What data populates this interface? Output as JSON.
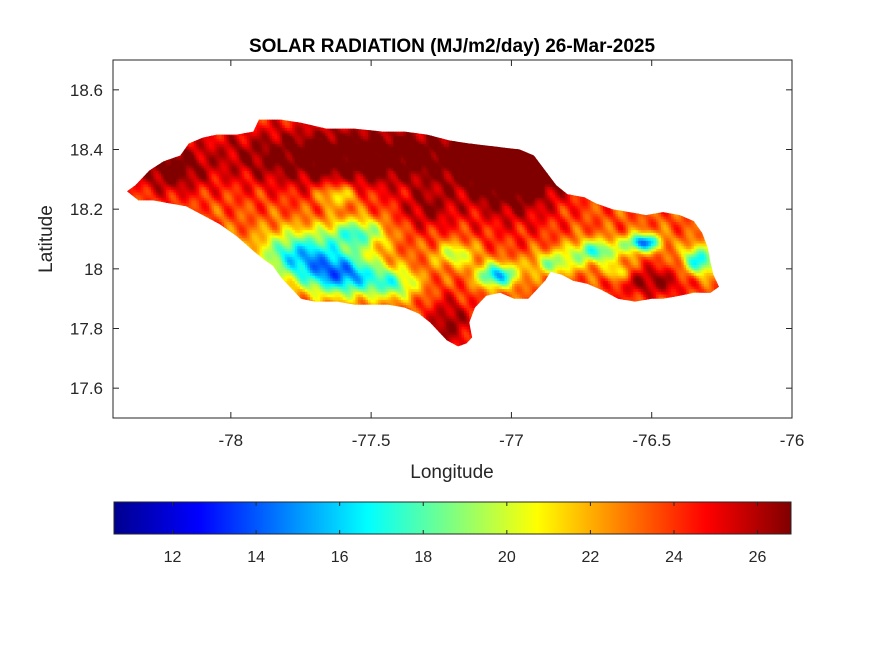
{
  "chart_data": {
    "type": "heatmap",
    "title": "SOLAR RADIATION (MJ/m2/day) 26-Mar-2025",
    "xlabel": "Longitude",
    "ylabel": "Latitude",
    "xlim": [
      -78.42,
      -76.0
    ],
    "ylim": [
      17.5,
      18.7
    ],
    "xticks": [
      -78,
      -77.5,
      -77,
      -76.5,
      -76
    ],
    "xtick_labels": [
      "-78",
      "-77.5",
      "-77",
      "-76.5",
      "-76"
    ],
    "yticks": [
      17.6,
      17.8,
      18,
      18.2,
      18.4,
      18.6
    ],
    "ytick_labels": [
      "17.6",
      "17.8",
      "18",
      "18.2",
      "18.4",
      "18.6"
    ],
    "grid": false,
    "colorbar": {
      "orientation": "horizontal",
      "colormap": "jet",
      "range": [
        10.6,
        26.8
      ],
      "ticks": [
        12,
        14,
        16,
        18,
        20,
        22,
        24,
        26
      ],
      "tick_labels": [
        "12",
        "14",
        "16",
        "18",
        "20",
        "22",
        "24",
        "26"
      ]
    },
    "outline": [
      [
        -78.37,
        18.26
      ],
      [
        -78.34,
        18.28
      ],
      [
        -78.29,
        18.33
      ],
      [
        -78.24,
        18.36
      ],
      [
        -78.18,
        18.38
      ],
      [
        -78.15,
        18.42
      ],
      [
        -78.1,
        18.44
      ],
      [
        -78.05,
        18.45
      ],
      [
        -77.98,
        18.45
      ],
      [
        -77.92,
        18.46
      ],
      [
        -77.9,
        18.5
      ],
      [
        -77.82,
        18.5
      ],
      [
        -77.75,
        18.49
      ],
      [
        -77.66,
        18.47
      ],
      [
        -77.56,
        18.47
      ],
      [
        -77.46,
        18.46
      ],
      [
        -77.38,
        18.46
      ],
      [
        -77.3,
        18.45
      ],
      [
        -77.22,
        18.43
      ],
      [
        -77.15,
        18.42
      ],
      [
        -77.06,
        18.41
      ],
      [
        -76.97,
        18.4
      ],
      [
        -76.92,
        18.38
      ],
      [
        -76.88,
        18.33
      ],
      [
        -76.84,
        18.28
      ],
      [
        -76.8,
        18.25
      ],
      [
        -76.74,
        18.24
      ],
      [
        -76.7,
        18.22
      ],
      [
        -76.64,
        18.2
      ],
      [
        -76.58,
        18.19
      ],
      [
        -76.52,
        18.18
      ],
      [
        -76.46,
        18.19
      ],
      [
        -76.4,
        18.18
      ],
      [
        -76.35,
        18.16
      ],
      [
        -76.32,
        18.12
      ],
      [
        -76.3,
        18.07
      ],
      [
        -76.29,
        18.02
      ],
      [
        -76.28,
        17.98
      ],
      [
        -76.26,
        17.94
      ],
      [
        -76.29,
        17.92
      ],
      [
        -76.35,
        17.92
      ],
      [
        -76.4,
        17.91
      ],
      [
        -76.46,
        17.9
      ],
      [
        -76.5,
        17.9
      ],
      [
        -76.56,
        17.89
      ],
      [
        -76.62,
        17.9
      ],
      [
        -76.68,
        17.93
      ],
      [
        -76.73,
        17.95
      ],
      [
        -76.78,
        17.96
      ],
      [
        -76.82,
        17.98
      ],
      [
        -76.86,
        17.99
      ],
      [
        -76.88,
        17.96
      ],
      [
        -76.91,
        17.93
      ],
      [
        -76.94,
        17.9
      ],
      [
        -76.99,
        17.9
      ],
      [
        -77.04,
        17.92
      ],
      [
        -77.09,
        17.91
      ],
      [
        -77.13,
        17.87
      ],
      [
        -77.15,
        17.82
      ],
      [
        -77.14,
        17.77
      ],
      [
        -77.16,
        17.75
      ],
      [
        -77.19,
        17.74
      ],
      [
        -77.23,
        17.76
      ],
      [
        -77.26,
        17.79
      ],
      [
        -77.29,
        17.82
      ],
      [
        -77.33,
        17.85
      ],
      [
        -77.38,
        17.87
      ],
      [
        -77.44,
        17.88
      ],
      [
        -77.5,
        17.88
      ],
      [
        -77.56,
        17.88
      ],
      [
        -77.62,
        17.89
      ],
      [
        -77.7,
        17.89
      ],
      [
        -77.75,
        17.9
      ],
      [
        -77.78,
        17.93
      ],
      [
        -77.82,
        17.97
      ],
      [
        -77.85,
        18.01
      ],
      [
        -77.88,
        18.03
      ],
      [
        -77.92,
        18.06
      ],
      [
        -77.98,
        18.11
      ],
      [
        -78.04,
        18.15
      ],
      [
        -78.1,
        18.18
      ],
      [
        -78.16,
        18.21
      ],
      [
        -78.22,
        18.22
      ],
      [
        -78.28,
        18.23
      ],
      [
        -78.33,
        18.23
      ],
      [
        -78.37,
        18.26
      ]
    ],
    "field_base": 23.5,
    "blobs": [
      {
        "lon": -77.55,
        "lat": 18.38,
        "rx": 0.55,
        "ry": 0.11,
        "amp": 4.5
      },
      {
        "lon": -77.0,
        "lat": 18.3,
        "rx": 0.18,
        "ry": 0.15,
        "amp": 4.0
      },
      {
        "lon": -76.9,
        "lat": 18.38,
        "rx": 0.2,
        "ry": 0.08,
        "amp": 3.5
      },
      {
        "lon": -78.22,
        "lat": 18.33,
        "rx": 0.12,
        "ry": 0.08,
        "amp": 3.0
      },
      {
        "lon": -77.3,
        "lat": 18.2,
        "rx": 0.1,
        "ry": 0.07,
        "amp": 2.5
      },
      {
        "lon": -77.22,
        "lat": 17.82,
        "rx": 0.08,
        "ry": 0.09,
        "amp": 3.0
      },
      {
        "lon": -76.5,
        "lat": 17.96,
        "rx": 0.13,
        "ry": 0.05,
        "amp": 3.0
      },
      {
        "lon": -77.75,
        "lat": 18.05,
        "rx": 0.15,
        "ry": 0.08,
        "amp": -7.0
      },
      {
        "lon": -77.6,
        "lat": 17.98,
        "rx": 0.14,
        "ry": 0.07,
        "amp": -8.0
      },
      {
        "lon": -77.55,
        "lat": 18.12,
        "rx": 0.1,
        "ry": 0.05,
        "amp": -5.5
      },
      {
        "lon": -77.42,
        "lat": 17.95,
        "rx": 0.09,
        "ry": 0.05,
        "amp": -4.5
      },
      {
        "lon": -77.62,
        "lat": 18.25,
        "rx": 0.07,
        "ry": 0.04,
        "amp": -3.5
      },
      {
        "lon": -77.05,
        "lat": 17.98,
        "rx": 0.07,
        "ry": 0.04,
        "amp": -8.0
      },
      {
        "lon": -77.2,
        "lat": 18.05,
        "rx": 0.07,
        "ry": 0.04,
        "amp": -4.0
      },
      {
        "lon": -76.85,
        "lat": 18.02,
        "rx": 0.08,
        "ry": 0.04,
        "amp": -4.5
      },
      {
        "lon": -76.7,
        "lat": 18.06,
        "rx": 0.09,
        "ry": 0.04,
        "amp": -6.0
      },
      {
        "lon": -76.53,
        "lat": 18.09,
        "rx": 0.06,
        "ry": 0.03,
        "amp": -9.0
      },
      {
        "lon": -76.33,
        "lat": 18.03,
        "rx": 0.06,
        "ry": 0.05,
        "amp": -7.0
      },
      {
        "lon": -76.62,
        "lat": 17.99,
        "rx": 0.05,
        "ry": 0.03,
        "amp": -3.5
      }
    ]
  }
}
